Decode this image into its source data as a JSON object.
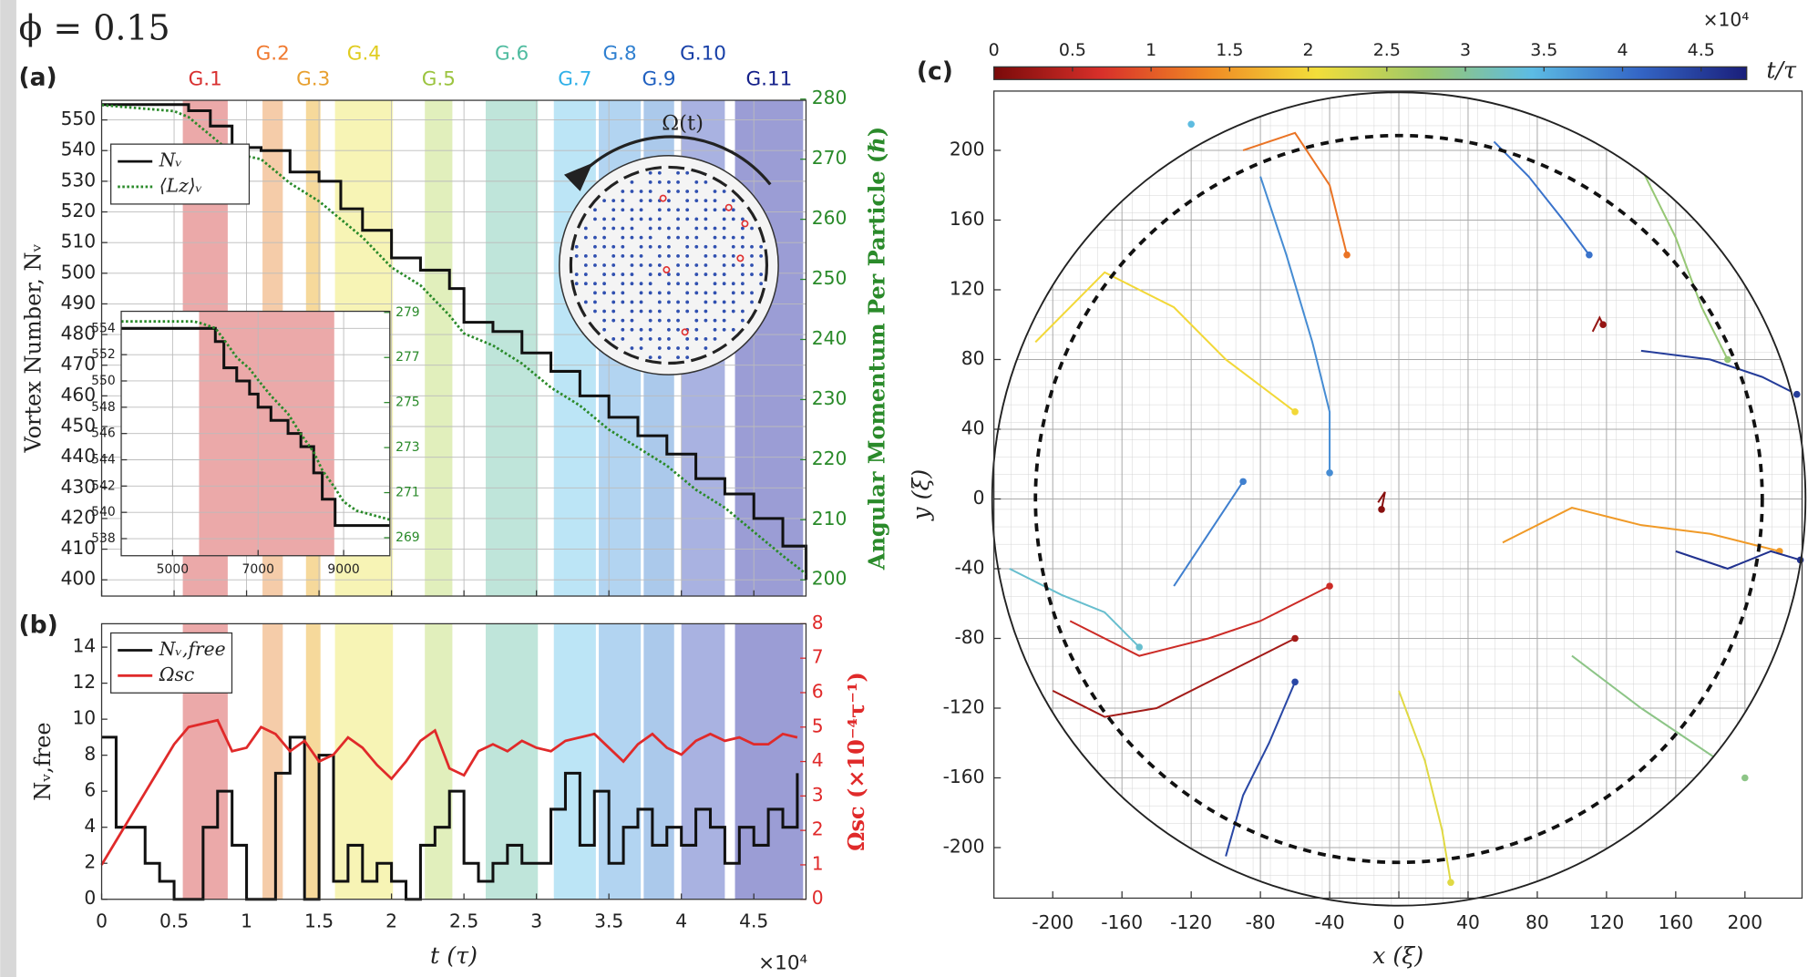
{
  "figure_label": "ϕ = 0.15",
  "chart_data": [
    {
      "type": "line",
      "panel": "(a)",
      "ylabel": "Vortex Number, Nᵥ",
      "y2label": "Angular Momentum Per Particle (ℏ)",
      "x": [
        0,
        0.5,
        0.6,
        0.75,
        0.9,
        1.1,
        1.3,
        1.5,
        1.65,
        1.8,
        2.0,
        2.2,
        2.4,
        2.5,
        2.7,
        2.9,
        3.1,
        3.3,
        3.5,
        3.7,
        3.9,
        4.1,
        4.3,
        4.5,
        4.7,
        4.86
      ],
      "series": [
        {
          "name": "Nᵥ",
          "color": "#111111",
          "step": true,
          "values": [
            555,
            555,
            553,
            548,
            541,
            540,
            533,
            530,
            521,
            514,
            505,
            501,
            495,
            484,
            481,
            474,
            468,
            460,
            453,
            447,
            441,
            433,
            428,
            420,
            411,
            400
          ]
        },
        {
          "name": "⟨Lz⟩ᵥ",
          "color": "#2a8a2a",
          "dash": "dotted",
          "axis": "y2",
          "values": [
            279,
            278,
            277,
            274,
            271,
            270,
            266,
            263,
            260,
            257,
            252,
            249,
            244,
            241,
            239,
            236,
            232,
            229,
            225,
            222,
            219,
            215,
            212,
            208,
            204,
            201
          ]
        }
      ],
      "xlim": [
        0,
        4.86
      ],
      "ylim": [
        394.7,
        556.4
      ],
      "yticks": [
        400,
        410,
        420,
        430,
        440,
        450,
        460,
        470,
        480,
        490,
        500,
        510,
        520,
        530,
        540,
        550
      ],
      "y2lim": [
        197.3,
        279.8
      ],
      "y2ticks": [
        200,
        210,
        220,
        230,
        240,
        250,
        260,
        270,
        280
      ],
      "grid": true,
      "legend": "upper left",
      "annotation": "Ω(t)",
      "groups": [
        {
          "label": "G.1",
          "start": 0.56,
          "end": 0.87,
          "color": "#e89a9a",
          "label_color": "#d83030"
        },
        {
          "label": "G.2",
          "start": 1.11,
          "end": 1.25,
          "color": "#f3c39a",
          "label_color": "#f07a30"
        },
        {
          "label": "G.3",
          "start": 1.41,
          "end": 1.51,
          "color": "#f4d28a",
          "label_color": "#e8a030"
        },
        {
          "label": "G.4",
          "start": 1.61,
          "end": 2.01,
          "color": "#f6f2a8",
          "label_color": "#e0cc20"
        },
        {
          "label": "G.5",
          "start": 2.23,
          "end": 2.42,
          "color": "#dcecb0",
          "label_color": "#9cc440"
        },
        {
          "label": "G.6",
          "start": 2.65,
          "end": 3.01,
          "color": "#b4e0d4",
          "label_color": "#50bca0"
        },
        {
          "label": "G.7",
          "start": 3.12,
          "end": 3.41,
          "color": "#b0e0f4",
          "label_color": "#30b0e8"
        },
        {
          "label": "G.8",
          "start": 3.43,
          "end": 3.72,
          "color": "#a4cdef",
          "label_color": "#3080d0"
        },
        {
          "label": "G.9",
          "start": 3.74,
          "end": 3.95,
          "color": "#9cc0e8",
          "label_color": "#2060c0"
        },
        {
          "label": "G.10",
          "start": 4.0,
          "end": 4.3,
          "color": "#9aa4dc",
          "label_color": "#1840a8"
        },
        {
          "label": "G.11",
          "start": 4.37,
          "end": 4.84,
          "color": "#8a8cce",
          "label_color": "#14208a"
        }
      ]
    },
    {
      "type": "line",
      "panel": "inset",
      "x": [
        3800,
        5500,
        5700,
        6000,
        6200,
        6500,
        6800,
        7000,
        7300,
        7700,
        8000,
        8300,
        8500,
        8800,
        9000,
        9300,
        10080
      ],
      "series": [
        {
          "color": "#111111",
          "step": true,
          "values": [
            554,
            554,
            554,
            553,
            551,
            550,
            549,
            548,
            547,
            546,
            545,
            543,
            541,
            539,
            539,
            539,
            539
          ]
        },
        {
          "color": "#2a8a2a",
          "dash": "dotted",
          "axis": "y2",
          "values": [
            278.6,
            278.6,
            278.5,
            278.3,
            277.8,
            277,
            276.5,
            276,
            275.3,
            274.5,
            273.6,
            272.8,
            272,
            271.2,
            270.6,
            270.2,
            269.8
          ]
        }
      ],
      "xlim": [
        3800,
        10080
      ],
      "xticks": [
        5000,
        7000,
        9000
      ],
      "ylim": [
        536.7,
        555.3
      ],
      "yticks": [
        538,
        540,
        542,
        544,
        546,
        548,
        550,
        552,
        554
      ],
      "y2lim": [
        268.2,
        279.05
      ],
      "y2ticks": [
        269,
        271,
        273,
        275,
        277,
        279
      ],
      "grid": true,
      "groups": [
        {
          "start": 5620,
          "end": 8780,
          "color": "#e89a9a"
        }
      ]
    },
    {
      "type": "line",
      "panel": "(b)",
      "xlabel": "t (τ)",
      "x_multiplier": "×10⁴",
      "ylabel": "Nᵥ,free",
      "y2label": "Ωsc (×10⁻⁴τ⁻¹)",
      "x": [
        0,
        0.1,
        0.2,
        0.3,
        0.4,
        0.5,
        0.6,
        0.7,
        0.8,
        0.9,
        1.0,
        1.1,
        1.2,
        1.3,
        1.4,
        1.5,
        1.6,
        1.7,
        1.8,
        1.9,
        2.0,
        2.1,
        2.2,
        2.3,
        2.4,
        2.5,
        2.6,
        2.7,
        2.8,
        2.9,
        3.0,
        3.1,
        3.2,
        3.3,
        3.4,
        3.5,
        3.6,
        3.7,
        3.8,
        3.9,
        4.0,
        4.1,
        4.2,
        4.3,
        4.4,
        4.5,
        4.6,
        4.7,
        4.8
      ],
      "series": [
        {
          "name": "Nᵥ,free",
          "color": "#111111",
          "step": true,
          "values": [
            9,
            4,
            4,
            2,
            1,
            0,
            0,
            4,
            6,
            3,
            0,
            0,
            7,
            9,
            0,
            8,
            1,
            3,
            1,
            2,
            1,
            0,
            3,
            4,
            6,
            2,
            1,
            2,
            3,
            2,
            2,
            5,
            7,
            3,
            6,
            2,
            4,
            5,
            3,
            4,
            3,
            5,
            4,
            2,
            4,
            3,
            5,
            4,
            7
          ]
        },
        {
          "name": "Ωsc",
          "color": "#e02a2a",
          "axis": "y2",
          "values": [
            1.0,
            1.7,
            2.4,
            3.1,
            3.8,
            4.5,
            5.0,
            5.1,
            5.2,
            4.3,
            4.4,
            5.0,
            4.8,
            4.3,
            4.6,
            4.0,
            4.2,
            4.7,
            4.4,
            3.9,
            3.5,
            4.0,
            4.6,
            4.9,
            3.8,
            3.6,
            4.3,
            4.5,
            4.3,
            4.6,
            4.4,
            4.3,
            4.6,
            4.7,
            4.8,
            4.4,
            4.0,
            4.5,
            4.8,
            4.4,
            4.2,
            4.6,
            4.8,
            4.6,
            4.7,
            4.5,
            4.5,
            4.8,
            4.7
          ]
        }
      ],
      "xlim": [
        0,
        4.86
      ],
      "xticks": [
        0,
        0.5,
        1,
        1.5,
        2,
        2.5,
        3,
        3.5,
        4,
        4.5
      ],
      "ylim": [
        0,
        15.3
      ],
      "yticks": [
        0,
        2,
        4,
        6,
        8,
        10,
        12,
        14
      ],
      "y2lim": [
        0,
        8
      ],
      "y2ticks": [
        0,
        1,
        2,
        3,
        4,
        5,
        6,
        7,
        8
      ],
      "grid": false,
      "legend": "upper left"
    },
    {
      "type": "trajectory",
      "panel": "(c)",
      "xlabel": "x (ξ)",
      "ylabel": "y (ξ)",
      "xlim": [
        -234,
        233
      ],
      "ylim": [
        -229,
        234
      ],
      "xticks": [
        -200,
        -160,
        -120,
        -80,
        -40,
        0,
        40,
        80,
        120,
        160,
        200
      ],
      "yticks": [
        -200,
        -160,
        -120,
        -80,
        -40,
        0,
        40,
        80,
        120,
        160,
        200
      ],
      "grid": true,
      "boundary_radius": 235,
      "dashed_radius": 210,
      "colorbar": {
        "label": "t/τ",
        "multiplier": "×10⁴",
        "lim": [
          0,
          4.79
        ],
        "ticks": [
          0,
          0.5,
          1,
          1.5,
          2,
          2.5,
          3,
          3.5,
          4,
          4.5
        ],
        "colormap": [
          "#7a0a0a",
          "#d8302a",
          "#f08a24",
          "#f2de3a",
          "#9cc86a",
          "#5cbce4",
          "#3466c6",
          "#1a1e7a"
        ]
      },
      "tracks": [
        {
          "t": 0.3,
          "x": [
            -200,
            -170,
            -140,
            -100,
            -60
          ],
          "y": [
            -110,
            -125,
            -120,
            -100,
            -80
          ]
        },
        {
          "t": 0.6,
          "x": [
            -190,
            -150,
            -110,
            -80,
            -40
          ],
          "y": [
            -70,
            -90,
            -80,
            -70,
            -50
          ]
        },
        {
          "t": 0.1,
          "x": [
            -12,
            -8,
            -10
          ],
          "y": [
            -2,
            4,
            -6
          ]
        },
        {
          "t": 0.2,
          "x": [
            112,
            116,
            118
          ],
          "y": [
            96,
            104,
            100
          ]
        },
        {
          "t": 1.5,
          "x": [
            60,
            100,
            140,
            180,
            220
          ],
          "y": [
            -25,
            -5,
            -15,
            -20,
            -30
          ]
        },
        {
          "t": 1.2,
          "x": [
            -90,
            -60,
            -40,
            -30
          ],
          "y": [
            200,
            210,
            180,
            140
          ]
        },
        {
          "t": 2.0,
          "x": [
            -210,
            -170,
            -130,
            -100,
            -60
          ],
          "y": [
            90,
            130,
            110,
            80,
            50
          ]
        },
        {
          "t": 2.2,
          "x": [
            0,
            15,
            25,
            30
          ],
          "y": [
            -110,
            -150,
            -190,
            -220
          ]
        },
        {
          "t": 2.8,
          "x": [
            140,
            160,
            175,
            190
          ],
          "y": [
            190,
            150,
            110,
            80
          ]
        },
        {
          "t": 2.9,
          "x": [
            100,
            140,
            170,
            200
          ],
          "y": [
            -90,
            -120,
            -140,
            -160
          ]
        },
        {
          "t": 3.3,
          "x": [
            -225,
            -195,
            -170,
            -150
          ],
          "y": [
            -40,
            -55,
            -65,
            -85
          ]
        },
        {
          "t": 3.4,
          "x": [
            -215,
            -185,
            -160,
            -120
          ],
          "y": [
            150,
            180,
            205,
            215
          ]
        },
        {
          "t": 3.8,
          "x": [
            -80,
            -65,
            -50,
            -40,
            -40
          ],
          "y": [
            185,
            140,
            90,
            50,
            15
          ]
        },
        {
          "t": 4.0,
          "x": [
            55,
            75,
            95,
            110
          ],
          "y": [
            205,
            185,
            160,
            140
          ]
        },
        {
          "t": 4.5,
          "x": [
            140,
            180,
            210,
            230
          ],
          "y": [
            85,
            80,
            70,
            60
          ]
        },
        {
          "t": 4.6,
          "x": [
            160,
            190,
            215,
            232
          ],
          "y": [
            -30,
            -40,
            -30,
            -35
          ]
        },
        {
          "t": 4.4,
          "x": [
            -100,
            -90,
            -75,
            -60
          ],
          "y": [
            -205,
            -170,
            -140,
            -105
          ]
        },
        {
          "t": 3.9,
          "x": [
            -130,
            -110,
            -90
          ],
          "y": [
            -50,
            -20,
            10
          ]
        }
      ]
    }
  ]
}
